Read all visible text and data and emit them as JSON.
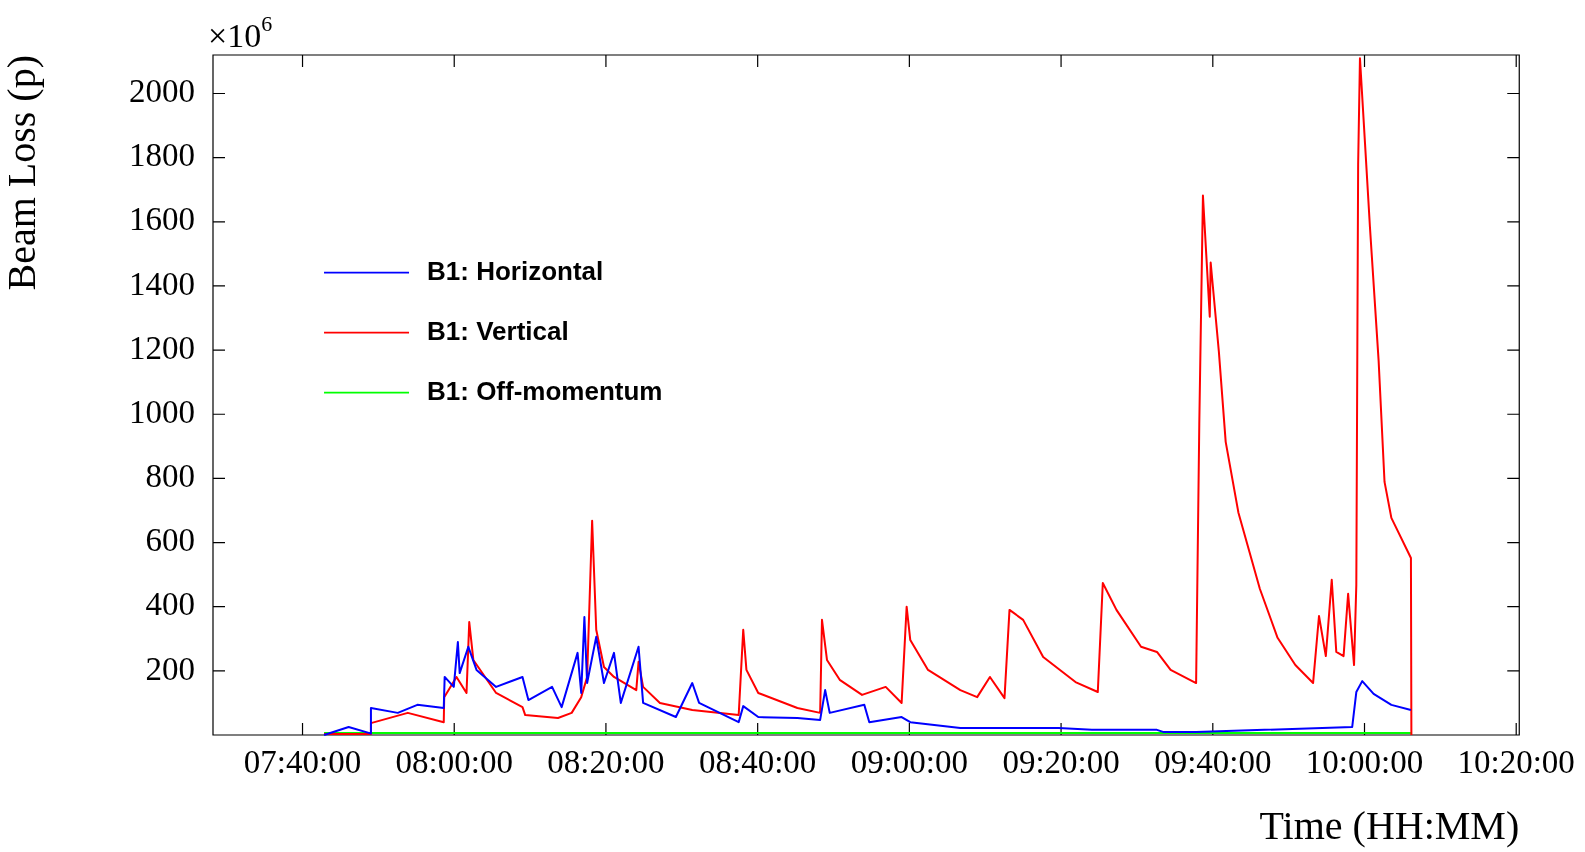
{
  "chart_data": {
    "type": "line",
    "xlabel": "Time (HH:MM)",
    "ylabel": "Beam Loss (p)",
    "annotations": [
      "×10$^{6}$"
    ],
    "xlim": [
      7.47,
      10.34
    ],
    "xticks": [
      {
        "value": 7.6667,
        "label": "07:40:00"
      },
      {
        "value": 8,
        "label": "08:00:00"
      },
      {
        "value": 8.3333,
        "label": "08:20:00"
      },
      {
        "value": 8.6667,
        "label": "08:40:00"
      },
      {
        "value": 9,
        "label": "09:00:00"
      },
      {
        "value": 9.3333,
        "label": "09:20:00"
      },
      {
        "value": 9.6667,
        "label": "09:40:00"
      },
      {
        "value": 10,
        "label": "10:00:00"
      },
      {
        "value": 10.3333,
        "label": "10:20:00"
      }
    ],
    "ylim": [
      0,
      2120
    ],
    "yticks": [
      200,
      400,
      600,
      800,
      1000,
      1200,
      1400,
      1600,
      1800,
      2000
    ],
    "legend": "top left",
    "series": [
      {
        "name": "B1: Horizontal",
        "color": "#0000ff",
        "x": [
          7.714,
          7.768,
          7.816,
          7.817,
          7.876,
          7.919,
          7.977,
          7.979,
          7.999,
          8.008,
          8.012,
          8.031,
          8.049,
          8.092,
          8.15,
          8.163,
          8.215,
          8.236,
          8.271,
          8.279,
          8.286,
          8.292,
          8.312,
          8.329,
          8.351,
          8.366,
          8.405,
          8.415,
          8.487,
          8.523,
          8.538,
          8.625,
          8.635,
          8.668,
          8.754,
          8.804,
          8.815,
          8.825,
          8.901,
          8.912,
          8.983,
          9.002,
          9.112,
          9.328,
          9.401,
          9.544,
          9.559,
          9.63,
          9.973,
          9.982,
          9.995,
          10.02,
          10.059,
          10.102
        ],
        "values": [
          0,
          25,
          5,
          84,
          69,
          94,
          84,
          181,
          150,
          290,
          193,
          275,
          203,
          150,
          181,
          109,
          150,
          87,
          256,
          131,
          368,
          162,
          306,
          162,
          256,
          100,
          275,
          100,
          56,
          162,
          100,
          40,
          90,
          56,
          53,
          47,
          140,
          69,
          94,
          40,
          56,
          40,
          22,
          22,
          16,
          16,
          9,
          9,
          25,
          134,
          168,
          128,
          94,
          78
        ]
      },
      {
        "name": "B1: Vertical",
        "color": "#ff0000",
        "x": [
          7.714,
          7.816,
          7.817,
          7.898,
          7.977,
          7.978,
          8.005,
          8.027,
          8.033,
          8.042,
          8.092,
          8.15,
          8.156,
          8.228,
          8.258,
          8.279,
          8.292,
          8.303,
          8.312,
          8.329,
          8.351,
          8.4,
          8.405,
          8.415,
          8.452,
          8.523,
          8.625,
          8.635,
          8.642,
          8.668,
          8.754,
          8.804,
          8.808,
          8.819,
          8.847,
          8.896,
          8.948,
          8.983,
          8.994,
          9.002,
          9.041,
          9.112,
          9.149,
          9.177,
          9.209,
          9.22,
          9.25,
          9.294,
          9.365,
          9.414,
          9.425,
          9.455,
          9.509,
          9.544,
          9.574,
          9.63,
          9.637,
          9.645,
          9.66,
          9.662,
          9.68,
          9.695,
          9.723,
          9.77,
          9.809,
          9.848,
          9.887,
          9.9,
          9.915,
          9.928,
          9.938,
          9.954,
          9.964,
          9.977,
          9.982,
          9.986,
          9.99,
          10.001,
          10.012,
          10.031,
          10.044,
          10.059,
          10.102,
          10.103
        ],
        "values": [
          3,
          3,
          37,
          69,
          40,
          118,
          181,
          131,
          352,
          234,
          131,
          87,
          62,
          53,
          69,
          118,
          181,
          668,
          328,
          212,
          181,
          140,
          228,
          150,
          100,
          78,
          62,
          328,
          203,
          131,
          84,
          69,
          359,
          234,
          172,
          125,
          150,
          100,
          400,
          296,
          203,
          140,
          118,
          181,
          115,
          390,
          359,
          243,
          165,
          134,
          474,
          390,
          275,
          259,
          203,
          162,
          970,
          1682,
          1304,
          1473,
          1195,
          914,
          693,
          456,
          303,
          218,
          162,
          371,
          246,
          484,
          259,
          246,
          440,
          218,
          468,
          1778,
          2110,
          1847,
          1582,
          1167,
          789,
          677,
          552,
          0
        ]
      },
      {
        "name": "B1: Off-momentum",
        "color": "#00ff00",
        "x": [
          7.714,
          7.817,
          9.0,
          10.102
        ],
        "values": [
          6,
          6,
          6,
          6
        ]
      }
    ]
  }
}
